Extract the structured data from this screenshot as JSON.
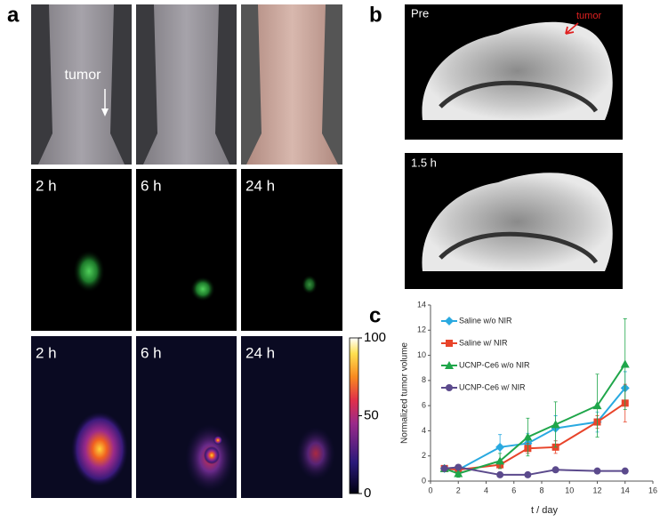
{
  "panel_a": {
    "label": "a",
    "tumor_label": "tumor",
    "fluorescence_times": [
      "2 h",
      "6 h",
      "24 h"
    ],
    "heatmap_times": [
      "2 h",
      "6 h",
      "24 h"
    ],
    "colorbar": {
      "range": [
        0,
        100
      ],
      "ticks": [
        0,
        50,
        100
      ]
    }
  },
  "panel_b": {
    "label": "b",
    "images": [
      {
        "label": "Pre",
        "annotation": "tumor"
      },
      {
        "label": "1.5 h"
      }
    ]
  },
  "panel_c": {
    "label": "c"
  },
  "chart_data": {
    "type": "line",
    "xlabel": "t / day",
    "ylabel": "Normalized tumor volume",
    "x": [
      1,
      2,
      5,
      7,
      9,
      12,
      14
    ],
    "series": [
      {
        "name": "Saline w/o NIR",
        "color": "#29a9e0",
        "marker": "diamond",
        "values": [
          1.0,
          0.9,
          2.7,
          3.0,
          4.2,
          4.7,
          7.4
        ],
        "errors": [
          0.1,
          0.3,
          1.0,
          0.8,
          1.0,
          0.8,
          1.3
        ]
      },
      {
        "name": "Saline w/ NIR",
        "color": "#e8442a",
        "marker": "square",
        "values": [
          1.0,
          0.9,
          1.3,
          2.6,
          2.7,
          4.7,
          6.2
        ],
        "errors": [
          0.1,
          0.2,
          0.3,
          0.4,
          0.5,
          0.5,
          1.5
        ]
      },
      {
        "name": "UCNP-Ce6 w/o NIR",
        "color": "#1fa64a",
        "marker": "triangle",
        "values": [
          1.0,
          0.6,
          1.6,
          3.5,
          4.5,
          6.0,
          9.3
        ],
        "errors": [
          0.2,
          0.3,
          0.6,
          1.5,
          1.8,
          2.5,
          3.6
        ]
      },
      {
        "name": "UCNP-Ce6 w/ NIR",
        "color": "#5b4a8c",
        "marker": "circle",
        "values": [
          1.0,
          1.1,
          0.5,
          0.5,
          0.9,
          0.8,
          0.8
        ],
        "errors": [
          0.1,
          0.2,
          0.1,
          0.1,
          0.1,
          0.1,
          0.1
        ]
      }
    ],
    "xlim": [
      0,
      16
    ],
    "xticks": [
      0,
      2,
      4,
      6,
      8,
      10,
      12,
      14,
      16
    ],
    "ylim": [
      0,
      14
    ],
    "yticks": [
      0,
      2,
      4,
      6,
      8,
      10,
      12,
      14
    ],
    "legend": "upper left"
  }
}
